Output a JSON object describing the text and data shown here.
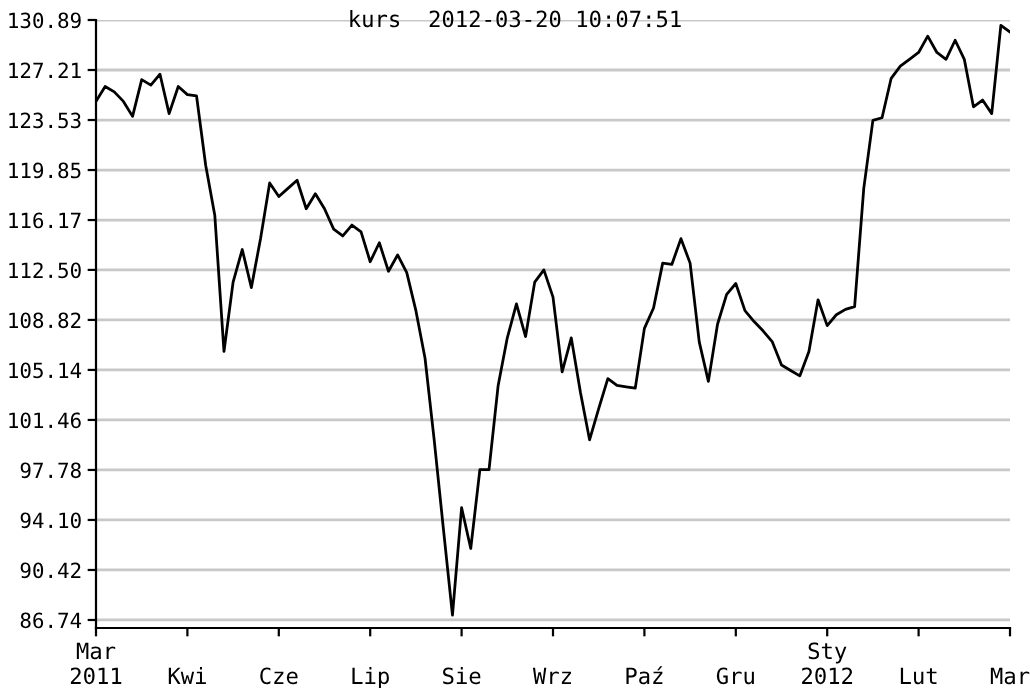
{
  "chart_data": {
    "type": "line",
    "title": "kurs  2012-03-20 10:07:51",
    "categories": [
      "Mar\n2011",
      null,
      null,
      null,
      null,
      null,
      null,
      null,
      null,
      null,
      "Kwi",
      null,
      null,
      null,
      null,
      null,
      null,
      null,
      null,
      null,
      "Cze",
      null,
      null,
      null,
      null,
      null,
      null,
      null,
      null,
      null,
      "Lip",
      null,
      null,
      null,
      null,
      null,
      null,
      null,
      null,
      null,
      "Sie",
      null,
      null,
      null,
      null,
      null,
      null,
      null,
      null,
      null,
      "Wrz",
      null,
      null,
      null,
      null,
      null,
      null,
      null,
      null,
      null,
      "Paź",
      null,
      null,
      null,
      null,
      null,
      null,
      null,
      null,
      null,
      "Gru",
      null,
      null,
      null,
      null,
      null,
      null,
      null,
      null,
      null,
      "Sty\n2012",
      null,
      null,
      null,
      null,
      null,
      null,
      null,
      null,
      null,
      "Lut",
      null,
      null,
      null,
      null,
      null,
      null,
      null,
      null,
      null,
      "Mar"
    ],
    "series": [
      {
        "color": "#000000",
        "values": [
          124.9,
          126.0,
          125.6,
          124.9,
          123.8,
          126.5,
          126.1,
          126.9,
          124.0,
          126.0,
          125.4,
          125.3,
          120.2,
          116.5,
          106.5,
          111.6,
          114.0,
          111.2,
          114.8,
          118.9,
          117.9,
          118.5,
          119.1,
          117.0,
          118.1,
          117.0,
          115.5,
          115.0,
          115.8,
          115.3,
          113.1,
          114.5,
          112.4,
          113.6,
          112.3,
          109.5,
          106.0,
          100.0,
          93.5,
          87.1,
          95.0,
          92.0,
          97.8,
          97.8,
          104.0,
          107.5,
          110.0,
          107.6,
          111.6,
          112.5,
          110.5,
          105.0,
          107.5,
          103.5,
          100.0,
          102.3,
          104.5,
          104.0,
          103.9,
          103.8,
          108.2,
          109.7,
          113.0,
          112.9,
          114.8,
          113.0,
          107.2,
          104.3,
          108.5,
          110.7,
          111.5,
          109.5,
          108.7,
          108.0,
          107.2,
          105.5,
          105.1,
          104.7,
          106.5,
          110.3,
          108.4,
          109.2,
          109.6,
          109.8,
          118.5,
          123.5,
          123.7,
          126.6,
          127.5,
          128.0,
          128.5,
          129.7,
          128.5,
          128.0,
          129.4,
          128.0,
          124.5,
          125.0,
          124.0,
          130.5,
          130.0
        ]
      }
    ],
    "ylim": [
      86.15,
      130.89
    ],
    "yticks": [
      {
        "value": 86.74,
        "label": "86.74"
      },
      {
        "value": 90.42,
        "label": "90.42"
      },
      {
        "value": 94.1,
        "label": "94.10"
      },
      {
        "value": 97.78,
        "label": "97.78"
      },
      {
        "value": 101.46,
        "label": "101.46"
      },
      {
        "value": 105.14,
        "label": "105.14"
      },
      {
        "value": 108.82,
        "label": "108.82"
      },
      {
        "value": 112.5,
        "label": "112.50"
      },
      {
        "value": 116.17,
        "label": "116.17"
      },
      {
        "value": 119.85,
        "label": "119.85"
      },
      {
        "value": 123.53,
        "label": "123.53"
      },
      {
        "value": 127.21,
        "label": "127.21"
      },
      {
        "value": 130.89,
        "label": "130.89"
      }
    ],
    "grid": "y"
  }
}
